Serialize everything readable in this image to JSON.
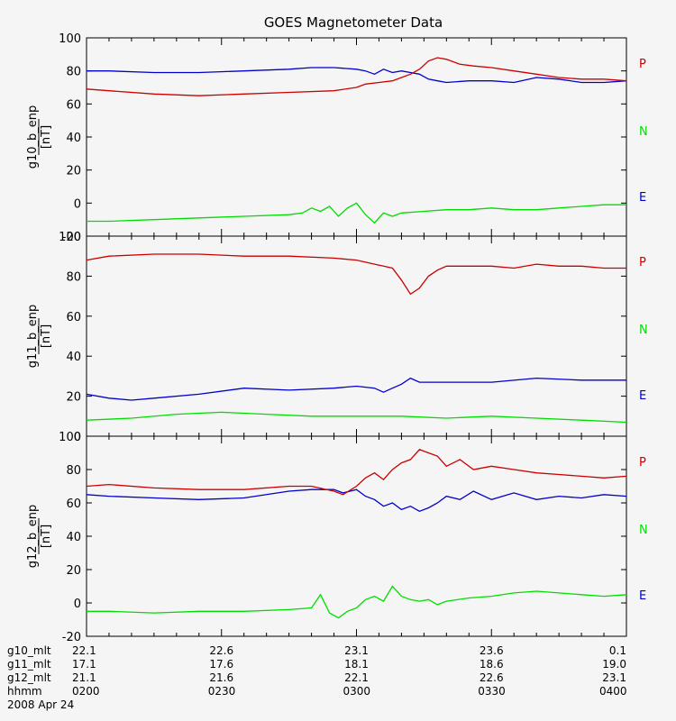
{
  "chart_data": {
    "type": "line",
    "title": "GOES Magnetometer Data",
    "colors": {
      "P": "#cc0000",
      "N": "#00dd00",
      "E": "#0000cc"
    },
    "legend_labels": [
      "P",
      "N",
      "E"
    ],
    "x_ticks": [
      "0200",
      "0230",
      "0300",
      "0330",
      "0400"
    ],
    "xlim": [
      0,
      120
    ],
    "x_unit": "minutes after 0200 UT",
    "panels": [
      {
        "ylabel": "g10_b_enp",
        "yunit": "[nT]",
        "ylim": [
          -20,
          100
        ],
        "yticks": [
          "100",
          "80",
          "60",
          "40",
          "20",
          "0",
          "-20"
        ],
        "series": [
          {
            "name": "P",
            "x": [
              0,
              5,
              15,
              25,
              35,
              45,
              55,
              60,
              62,
              65,
              68,
              70,
              72,
              74,
              76,
              78,
              80,
              83,
              86,
              90,
              95,
              100,
              105,
              110,
              115,
              120
            ],
            "y": [
              69,
              68,
              66,
              65,
              66,
              67,
              68,
              70,
              72,
              73,
              74,
              76,
              78,
              81,
              86,
              88,
              87,
              84,
              83,
              82,
              80,
              78,
              76,
              75,
              75,
              74
            ]
          },
          {
            "name": "E",
            "x": [
              0,
              5,
              15,
              25,
              35,
              45,
              50,
              55,
              60,
              62,
              64,
              66,
              68,
              70,
              72,
              74,
              76,
              78,
              80,
              85,
              90,
              95,
              100,
              105,
              110,
              115,
              120
            ],
            "y": [
              80,
              80,
              79,
              79,
              80,
              81,
              82,
              82,
              81,
              80,
              78,
              81,
              79,
              80,
              79,
              78,
              75,
              74,
              73,
              74,
              74,
              73,
              76,
              75,
              73,
              73,
              74
            ]
          },
          {
            "name": "N",
            "x": [
              0,
              5,
              15,
              25,
              35,
              45,
              48,
              50,
              52,
              54,
              56,
              58,
              60,
              62,
              64,
              66,
              68,
              70,
              75,
              80,
              85,
              90,
              95,
              100,
              105,
              110,
              115,
              120
            ],
            "y": [
              -11,
              -11,
              -10,
              -9,
              -8,
              -7,
              -6,
              -3,
              -5,
              -2,
              -8,
              -3,
              0,
              -7,
              -12,
              -6,
              -8,
              -6,
              -5,
              -4,
              -4,
              -3,
              -4,
              -4,
              -3,
              -2,
              -1,
              -1
            ]
          }
        ]
      },
      {
        "ylabel": "g11_b_enp",
        "yunit": "[nT]",
        "ylim": [
          0,
          100
        ],
        "yticks": [
          "100",
          "80",
          "60",
          "40",
          "20",
          "0"
        ],
        "series": [
          {
            "name": "P",
            "x": [
              0,
              5,
              15,
              25,
              35,
              45,
              55,
              60,
              64,
              66,
              68,
              70,
              72,
              74,
              76,
              78,
              80,
              85,
              90,
              95,
              100,
              105,
              110,
              115,
              120
            ],
            "y": [
              88,
              90,
              91,
              91,
              90,
              90,
              89,
              88,
              86,
              85,
              84,
              78,
              71,
              74,
              80,
              83,
              85,
              85,
              85,
              84,
              86,
              85,
              85,
              84,
              84
            ]
          },
          {
            "name": "E",
            "x": [
              0,
              5,
              10,
              15,
              25,
              35,
              45,
              55,
              60,
              64,
              66,
              68,
              70,
              72,
              74,
              76,
              80,
              90,
              100,
              110,
              120
            ],
            "y": [
              21,
              19,
              18,
              19,
              21,
              24,
              23,
              24,
              25,
              24,
              22,
              24,
              26,
              29,
              27,
              27,
              27,
              27,
              29,
              28,
              28
            ]
          },
          {
            "name": "N",
            "x": [
              0,
              10,
              20,
              30,
              40,
              50,
              60,
              70,
              80,
              90,
              100,
              110,
              120
            ],
            "y": [
              8,
              9,
              11,
              12,
              11,
              10,
              10,
              10,
              9,
              10,
              9,
              8,
              7
            ]
          }
        ]
      },
      {
        "ylabel": "g12_b_enp",
        "yunit": "[nT]",
        "ylim": [
          -20,
          100
        ],
        "yticks": [
          "100",
          "80",
          "60",
          "40",
          "20",
          "0",
          "-20"
        ],
        "series": [
          {
            "name": "P",
            "x": [
              0,
              5,
              15,
              25,
              35,
              45,
              50,
              55,
              57,
              60,
              62,
              64,
              66,
              68,
              70,
              72,
              74,
              76,
              78,
              80,
              83,
              86,
              90,
              95,
              100,
              105,
              110,
              115,
              120
            ],
            "y": [
              70,
              71,
              69,
              68,
              68,
              70,
              70,
              67,
              65,
              70,
              75,
              78,
              74,
              80,
              84,
              86,
              92,
              90,
              88,
              82,
              86,
              80,
              82,
              80,
              78,
              77,
              76,
              75,
              76
            ]
          },
          {
            "name": "E",
            "x": [
              0,
              5,
              15,
              25,
              35,
              45,
              50,
              55,
              57,
              60,
              62,
              64,
              66,
              68,
              70,
              72,
              74,
              76,
              78,
              80,
              83,
              86,
              90,
              95,
              100,
              105,
              110,
              115,
              120
            ],
            "y": [
              65,
              64,
              63,
              62,
              63,
              67,
              68,
              68,
              66,
              68,
              64,
              62,
              58,
              60,
              56,
              58,
              55,
              57,
              60,
              64,
              62,
              67,
              62,
              66,
              62,
              64,
              63,
              65,
              64
            ]
          },
          {
            "name": "N",
            "x": [
              0,
              5,
              15,
              25,
              35,
              45,
              50,
              52,
              54,
              56,
              58,
              60,
              62,
              64,
              66,
              68,
              70,
              72,
              74,
              76,
              78,
              80,
              85,
              90,
              95,
              100,
              105,
              110,
              115,
              120
            ],
            "y": [
              -5,
              -5,
              -6,
              -5,
              -5,
              -4,
              -3,
              5,
              -6,
              -9,
              -5,
              -3,
              2,
              4,
              1,
              10,
              4,
              2,
              1,
              2,
              -1,
              1,
              3,
              4,
              6,
              7,
              6,
              5,
              4,
              5
            ]
          }
        ]
      }
    ]
  },
  "footer": {
    "rows": [
      {
        "label": "g10_mlt",
        "values": [
          "22.1",
          "22.6",
          "23.1",
          "23.6",
          "0.1"
        ]
      },
      {
        "label": "g11_mlt",
        "values": [
          "17.1",
          "17.6",
          "18.1",
          "18.6",
          "19.0"
        ]
      },
      {
        "label": "g12_mlt",
        "values": [
          "21.1",
          "21.6",
          "22.1",
          "22.6",
          "23.1"
        ]
      },
      {
        "label": "hhmm",
        "values": [
          "0200",
          "0230",
          "0300",
          "0330",
          "0400"
        ]
      }
    ],
    "date": "2008 Apr 24"
  }
}
